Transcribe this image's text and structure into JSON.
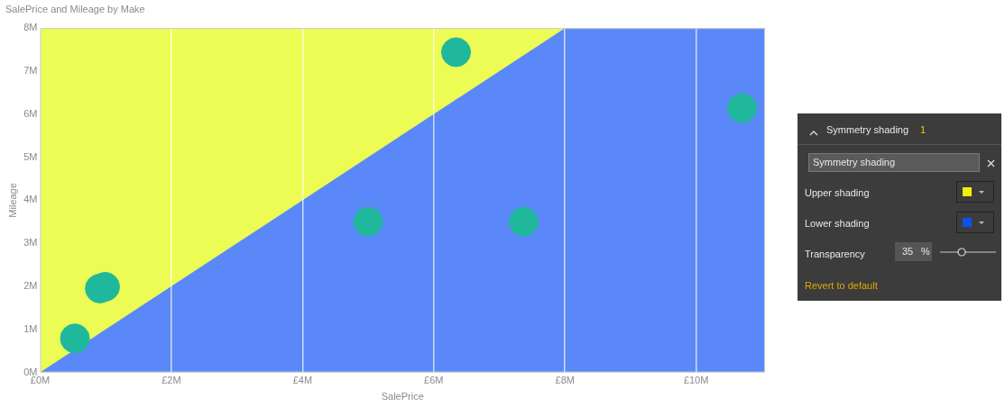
{
  "chart_data": [
    {
      "type": "scatter",
      "title": "SalePrice and Mileage by Make",
      "xlabel": "SalePrice",
      "ylabel": "Mileage",
      "xlim": [
        0,
        11.05
      ],
      "ylim": [
        0,
        8
      ],
      "xticks": [
        {
          "value": 0,
          "label": "£0M"
        },
        {
          "value": 2,
          "label": "£2M"
        },
        {
          "value": 4,
          "label": "£4M"
        },
        {
          "value": 6,
          "label": "£6M"
        },
        {
          "value": 8,
          "label": "£8M"
        },
        {
          "value": 10,
          "label": "£10M"
        }
      ],
      "yticks": [
        {
          "value": 0,
          "label": "0M"
        },
        {
          "value": 1,
          "label": "1M"
        },
        {
          "value": 2,
          "label": "2M"
        },
        {
          "value": 3,
          "label": "3M"
        },
        {
          "value": 4,
          "label": "4M"
        },
        {
          "value": 5,
          "label": "5M"
        },
        {
          "value": 6,
          "label": "6M"
        },
        {
          "value": 7,
          "label": "7M"
        },
        {
          "value": 8,
          "label": "8M"
        }
      ],
      "grid": "x",
      "legend": false,
      "series": [
        {
          "color": "#1fb89c",
          "marker": "circle",
          "x": [
            0.53,
            0.91,
            0.99,
            5.0,
            6.34,
            7.37,
            10.7
          ],
          "values": [
            0.79,
            1.95,
            1.99,
            3.5,
            7.44,
            3.5,
            6.14
          ]
        },
        {
          "type": "area",
          "color": "#ecfc54",
          "x": [
            0,
            8
          ],
          "values": [
            8,
            8
          ]
        },
        {
          "type": "area",
          "color": "#5a88f8",
          "x": [
            0,
            8,
            11.05
          ],
          "values": [
            0,
            8,
            8
          ]
        }
      ]
    },
    {
      "type": "other",
      "title": "Symmetry shading",
      "annotations": [
        "1",
        "Symmetry shading",
        "Upper shading",
        "Lower shading",
        "Transparency",
        "35",
        "%",
        "Revert to default"
      ]
    }
  ]
}
